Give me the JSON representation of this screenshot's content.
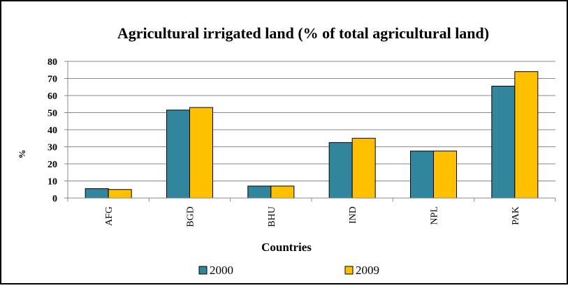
{
  "chart_data": {
    "type": "bar",
    "title": "Agricultural irrigated land (% of total agricultural land)",
    "xlabel": "Countries",
    "ylabel": "%",
    "ylim": [
      0,
      80
    ],
    "yticks": [
      0,
      10,
      20,
      30,
      40,
      50,
      60,
      70,
      80
    ],
    "grid": true,
    "legend_position": "bottom",
    "categories": [
      "AFG",
      "BGD",
      "BHU",
      "IND",
      "NPL",
      "PAK"
    ],
    "series": [
      {
        "name": "2000",
        "color": "#31859C",
        "values": [
          5.5,
          51.5,
          7,
          32.5,
          27.5,
          65.5
        ]
      },
      {
        "name": "2009",
        "color": "#FFC000",
        "values": [
          5,
          53,
          7,
          35,
          27.5,
          74
        ]
      }
    ]
  }
}
